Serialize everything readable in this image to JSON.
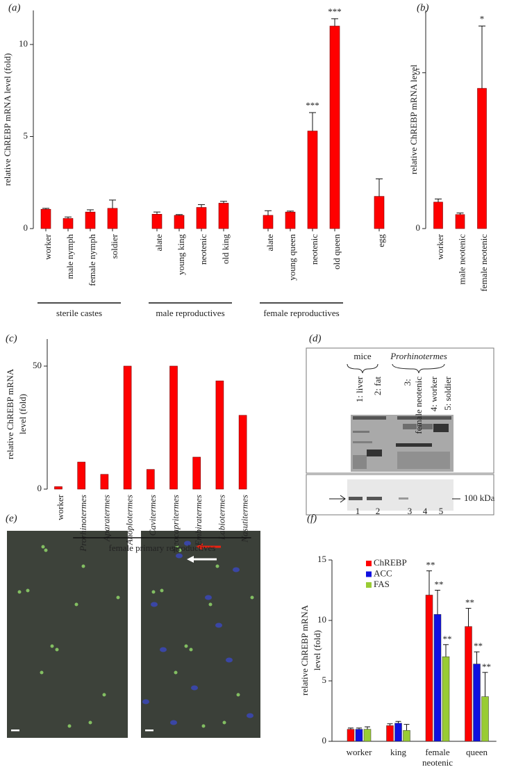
{
  "chart_data": [
    {
      "type": "bar",
      "panel_label": "(a)",
      "ylabel": "relative ChREBP mRNA level (fold)",
      "color": "#ff0000",
      "ylim": [
        0,
        11.85
      ],
      "yticks": [
        0,
        5,
        10
      ],
      "groups": [
        {
          "label": "sterile castes",
          "categories": [
            "worker",
            "male nymph",
            "female nymph",
            "soldier"
          ],
          "values": [
            1.05,
            0.55,
            0.9,
            1.1
          ],
          "errors": [
            0.05,
            0.08,
            0.12,
            0.45
          ],
          "significance": [
            null,
            null,
            null,
            null
          ]
        },
        {
          "label": "male reproductives",
          "categories": [
            "alate",
            "young king",
            "neotenic",
            "old king"
          ],
          "values": [
            0.78,
            0.72,
            1.15,
            1.38
          ],
          "errors": [
            0.12,
            0.04,
            0.15,
            0.1
          ],
          "significance": [
            null,
            null,
            null,
            null
          ]
        },
        {
          "label": "female reproductives",
          "categories": [
            "alate",
            "young queen",
            "neotenic",
            "old queen"
          ],
          "values": [
            0.72,
            0.9,
            5.3,
            11.0
          ],
          "errors": [
            0.25,
            0.05,
            1.0,
            0.4
          ],
          "significance": [
            null,
            null,
            "***",
            "***"
          ]
        },
        {
          "categories": [
            "egg"
          ],
          "values": [
            1.75
          ],
          "errors": [
            0.95
          ],
          "significance": [
            null
          ]
        }
      ]
    },
    {
      "type": "bar",
      "panel_label": "(b)",
      "ylabel": "relative ChREBP mRNA level",
      "color": "#ff0000",
      "ylim": [
        0,
        7
      ],
      "yticks": [
        0,
        5
      ],
      "groups": [
        {
          "categories": [
            "worker",
            "male neotenic",
            "female neotenic"
          ],
          "values": [
            0.85,
            0.45,
            4.5
          ],
          "errors": [
            0.1,
            0.05,
            2.0
          ],
          "significance": [
            null,
            null,
            "*"
          ]
        }
      ]
    },
    {
      "type": "bar",
      "panel_label": "(c)",
      "ylabel": [
        "relative ChREBP mRNA",
        "level (fold)"
      ],
      "color": "#ff0000",
      "ylim": [
        0,
        61
      ],
      "yticks": [
        0,
        50
      ],
      "groups": [
        {
          "categories": [
            "worker"
          ],
          "values": [
            1
          ]
        },
        {
          "label": "female primary reproductives",
          "categories": [
            "Prorhinotermes",
            "Aparatermes",
            "Anoplotermes",
            "Cavitermes",
            "Neocapritermes",
            "Embiratermes",
            "Labiotermes",
            "Nasutitermes"
          ],
          "values": [
            11,
            6,
            50,
            8,
            50,
            13,
            44,
            30
          ]
        }
      ]
    },
    {
      "type": "grouped_bar",
      "panel_label": "(f)",
      "ylabel": [
        "relative ChREBP mRNA",
        "level (fold)"
      ],
      "ylim": [
        0,
        15
      ],
      "yticks": [
        0,
        5,
        10,
        15
      ],
      "categories": [
        "worker",
        "king",
        "female neotenic",
        "queen"
      ],
      "series": [
        {
          "name": "ChREBP",
          "color": "#ff0000",
          "values": [
            1.0,
            1.3,
            12.1,
            9.5
          ],
          "errors": [
            0.1,
            0.15,
            2.0,
            1.5
          ],
          "significance": [
            null,
            null,
            "**",
            "**"
          ]
        },
        {
          "name": "ACC",
          "color": "#1010e0",
          "values": [
            1.0,
            1.5,
            10.5,
            6.4
          ],
          "errors": [
            0.1,
            0.15,
            2.0,
            1.0
          ],
          "significance": [
            null,
            null,
            "**",
            "**"
          ]
        },
        {
          "name": "FAS",
          "color": "#99cc33",
          "values": [
            1.0,
            0.9,
            7.0,
            3.7
          ],
          "errors": [
            0.2,
            0.5,
            1.0,
            2.0
          ],
          "significance": [
            null,
            null,
            "**",
            "**"
          ]
        }
      ]
    }
  ],
  "figures": {
    "d": {
      "panel_label": "(d)",
      "mice": "mice",
      "genus": "Prorhinotermes",
      "lanes": [
        "1: liver",
        "2: fat",
        "3: female neotenic",
        "4: worker",
        "5: soldier"
      ],
      "lane_numbers": [
        "1",
        "2",
        "3",
        "4",
        "5"
      ],
      "marker": "100 kDa"
    },
    "e": {
      "panel_label": "(e)"
    }
  }
}
